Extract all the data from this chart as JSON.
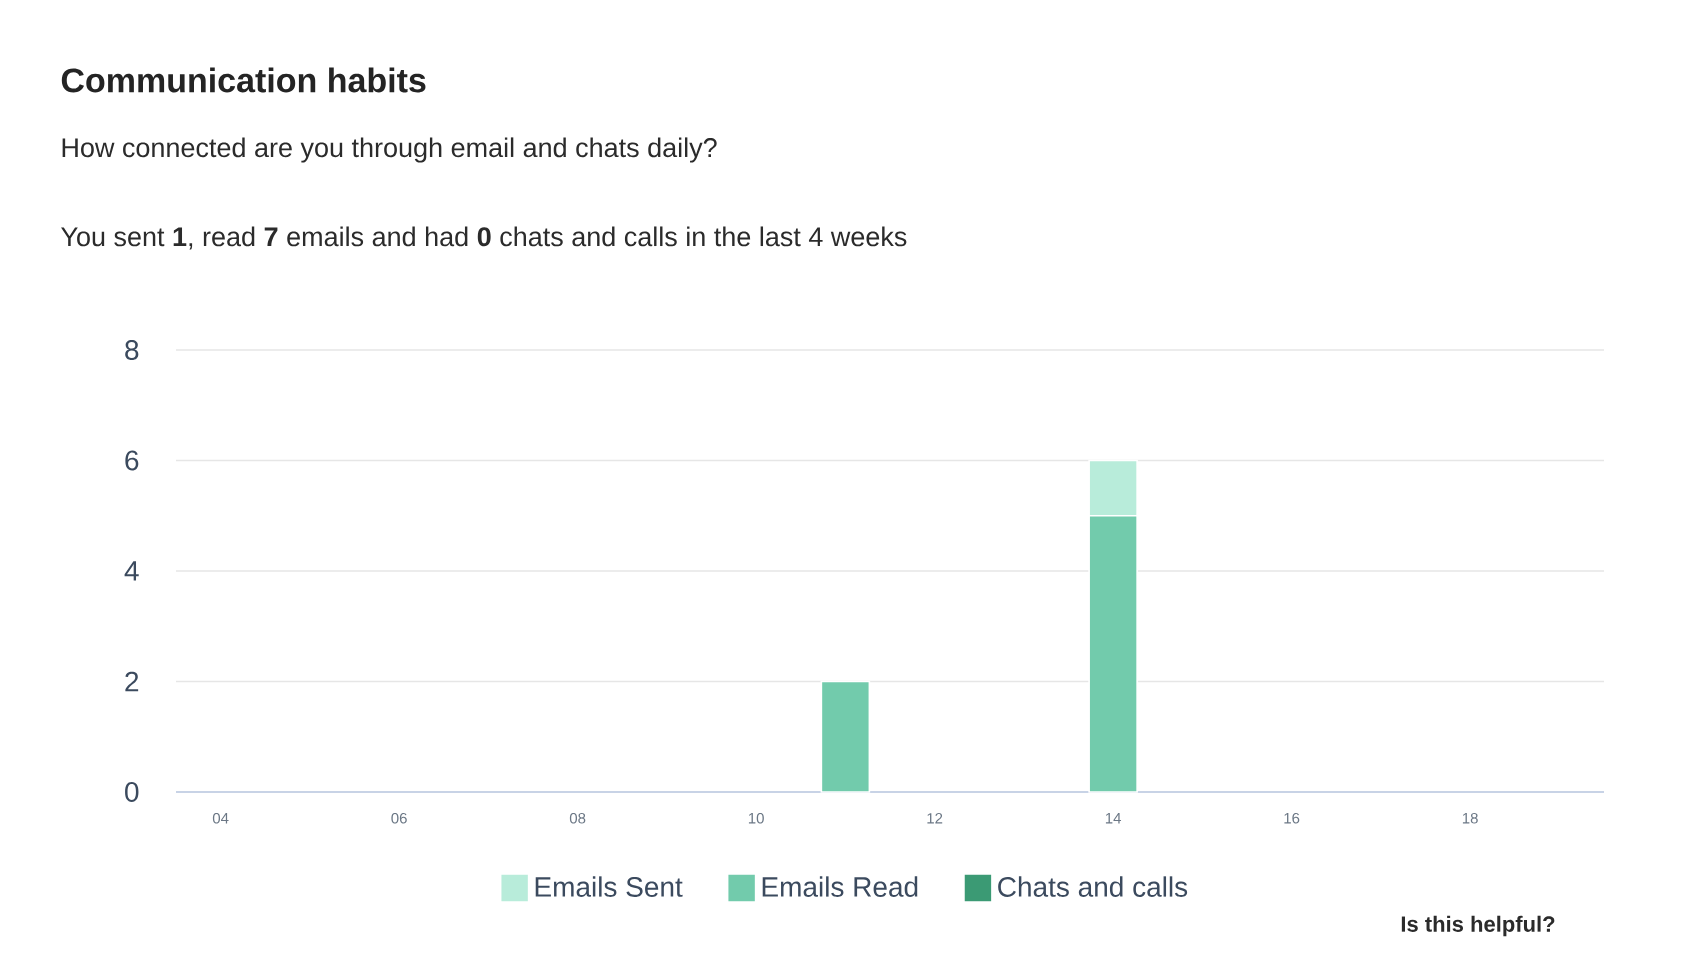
{
  "chart_data": {
    "type": "bar",
    "title": "Communication habits",
    "subtitle": "How connected are you through email and chats daily?",
    "annotations": [
      "You sent **1**, read **7** emails and had **0** chats and calls in the last 4 weeks",
      "Is this helpful?"
    ],
    "categories": [
      "04",
      null,
      "06",
      null,
      "08",
      null,
      "10",
      null,
      "12",
      null,
      "14",
      null,
      "16",
      null,
      "18",
      null
    ],
    "stacked": true,
    "series": [
      {
        "name": "Chats and calls",
        "color": "#3b9a74",
        "values": [
          0,
          0,
          0,
          0,
          0,
          0,
          0,
          0,
          0,
          0,
          0,
          0,
          0,
          0,
          0,
          0
        ]
      },
      {
        "name": "Emails Read",
        "color": "#72cbac",
        "values": [
          0,
          0,
          0,
          0,
          0,
          0,
          0,
          2,
          0,
          0,
          5,
          0,
          0,
          0,
          0,
          0
        ]
      },
      {
        "name": "Emails Sent",
        "color": "#b8ecda",
        "values": [
          0,
          0,
          0,
          0,
          0,
          0,
          0,
          0,
          0,
          0,
          1,
          0,
          0,
          0,
          0,
          0
        ]
      }
    ],
    "ylim": [
      0,
      8
    ],
    "yticks": [
      0,
      2,
      4,
      6,
      8
    ],
    "grid": "y",
    "legend": "bottom"
  }
}
